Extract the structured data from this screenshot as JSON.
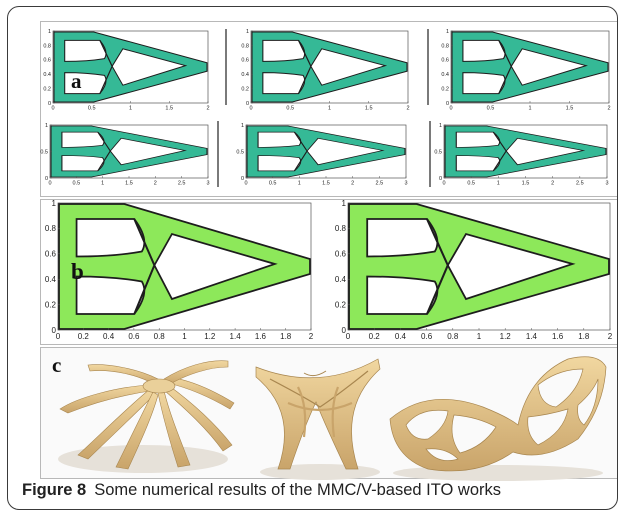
{
  "panels": {
    "a": {
      "label": "a",
      "color": "#35b996",
      "row1_plots": [
        {
          "x_ticks": [
            "0",
            "0.5",
            "1",
            "1.5",
            "2"
          ],
          "y_ticks": [
            "0",
            "0.2",
            "0.4",
            "0.6",
            "0.8",
            "1"
          ]
        },
        {
          "x_ticks": [
            "0",
            "0.5",
            "1",
            "1.5",
            "2"
          ],
          "y_ticks": [
            "0",
            "0.2",
            "0.4",
            "0.6",
            "0.8",
            "1"
          ]
        },
        {
          "x_ticks": [
            "0",
            "0.5",
            "1",
            "1.5",
            "2"
          ],
          "y_ticks": [
            "0",
            "0.2",
            "0.4",
            "0.6",
            "0.8",
            "1"
          ]
        }
      ],
      "row2_plots": [
        {
          "x_ticks": [
            "0",
            "0.5",
            "1",
            "1.5",
            "2",
            "2.5",
            "3"
          ],
          "y_ticks": [
            "0",
            "0.5",
            "1"
          ]
        },
        {
          "x_ticks": [
            "0",
            "0.5",
            "1",
            "1.5",
            "2",
            "2.5",
            "3"
          ],
          "y_ticks": [
            "0",
            "0.5",
            "1"
          ]
        },
        {
          "x_ticks": [
            "0",
            "0.5",
            "1",
            "1.5",
            "2",
            "2.5",
            "3"
          ],
          "y_ticks": [
            "0",
            "0.5",
            "1"
          ]
        }
      ]
    },
    "b": {
      "label": "b",
      "color": "#8de85a",
      "plots": [
        {
          "x_ticks": [
            "0",
            "0.2",
            "0.4",
            "0.6",
            "0.8",
            "1",
            "1.2",
            "1.4",
            "1.6",
            "1.8",
            "2"
          ],
          "y_ticks": [
            "0",
            "0.2",
            "0.4",
            "0.6",
            "0.8",
            "1"
          ]
        },
        {
          "x_ticks": [
            "0",
            "0.2",
            "0.4",
            "0.6",
            "0.8",
            "1",
            "1.2",
            "1.4",
            "1.6",
            "1.8",
            "2"
          ],
          "y_ticks": [
            "0",
            "0.2",
            "0.4",
            "0.6",
            "0.8",
            "1"
          ]
        }
      ]
    },
    "c": {
      "label": "c",
      "color": "#e9c98a",
      "shade": "#b89a5e"
    }
  },
  "caption": {
    "label": "Figure 8",
    "text": "Some numerical results of the MMC/V-based ITO works"
  }
}
